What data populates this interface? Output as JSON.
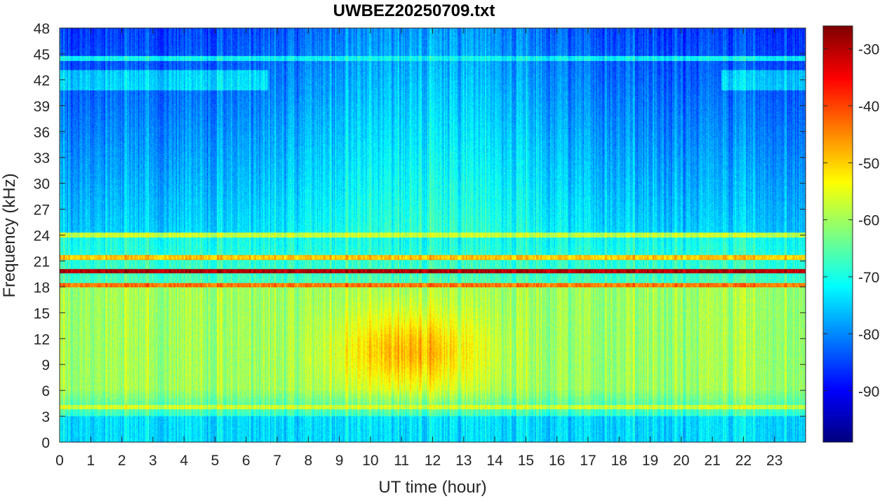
{
  "chart_data": {
    "type": "heatmap",
    "title": "UWBEZ20250709.txt",
    "xlabel": "UT time (hour)",
    "ylabel": "Frequency (kHz)",
    "x_ticks": [
      0,
      1,
      2,
      3,
      4,
      5,
      6,
      7,
      8,
      9,
      10,
      11,
      12,
      13,
      14,
      15,
      16,
      17,
      18,
      19,
      20,
      21,
      22,
      23
    ],
    "y_ticks": [
      0,
      3,
      6,
      9,
      12,
      15,
      18,
      21,
      24,
      27,
      30,
      33,
      36,
      39,
      42,
      45,
      48
    ],
    "xlim": [
      0,
      24
    ],
    "ylim": [
      0,
      48
    ],
    "colormap": "jet",
    "colorbar": {
      "ticks": [
        -90,
        -80,
        -70,
        -60,
        -50,
        -40,
        -30
      ],
      "clim": [
        -99,
        -26
      ],
      "location": "right"
    },
    "features": [
      {
        "freq_khz": 19.8,
        "time_hours": [
          0,
          24
        ],
        "level_db": -30
      },
      {
        "freq_khz": 18.2,
        "time_hours": [
          0,
          24
        ],
        "level_db": -44
      },
      {
        "freq_khz": 21.4,
        "time_hours": [
          0,
          24
        ],
        "level_db": -50
      },
      {
        "freq_khz": 24.0,
        "time_hours": [
          0,
          24
        ],
        "level_db": -58
      },
      {
        "freq_khz": 4.0,
        "time_hours": [
          0,
          24
        ],
        "level_db": -57
      },
      {
        "freq_khz": 44.5,
        "time_hours": [
          0,
          24
        ],
        "level_db": -72
      }
    ],
    "broadband_maximum": {
      "time_hours": [
        9,
        13.5
      ],
      "freq_khz": [
        6,
        15
      ],
      "level_db": -48
    }
  }
}
